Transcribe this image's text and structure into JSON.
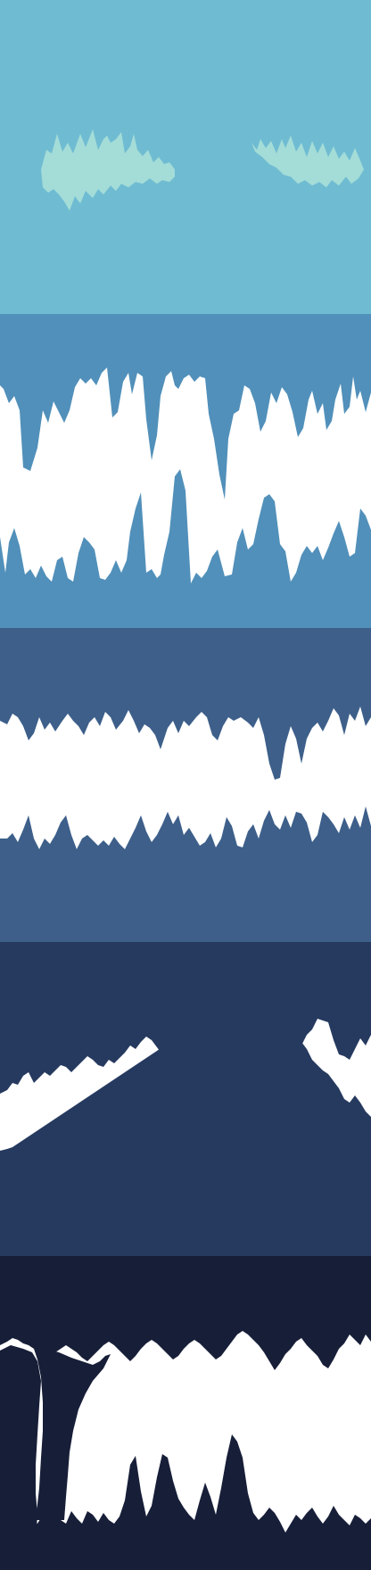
{
  "sprite_sheet": {
    "layers": [
      {
        "id": "sky",
        "kind": "sky-with-clouds",
        "background_color": "#6fbcd2",
        "cloud_color": "#a4dcd8"
      },
      {
        "id": "cave-1",
        "kind": "cave-silhouette",
        "rock_color": "#5190ba",
        "gap_color": "#ffffff"
      },
      {
        "id": "cave-2",
        "kind": "cave-silhouette",
        "rock_color": "#3d5f8a",
        "gap_color": "#ffffff"
      },
      {
        "id": "cave-3",
        "kind": "cave-silhouette",
        "rock_color": "#263a5f",
        "gap_color": "#ffffff"
      },
      {
        "id": "cave-4",
        "kind": "cave-silhouette-with-pillar",
        "rock_color": "#171e38",
        "gap_color": "#ffffff"
      }
    ]
  }
}
